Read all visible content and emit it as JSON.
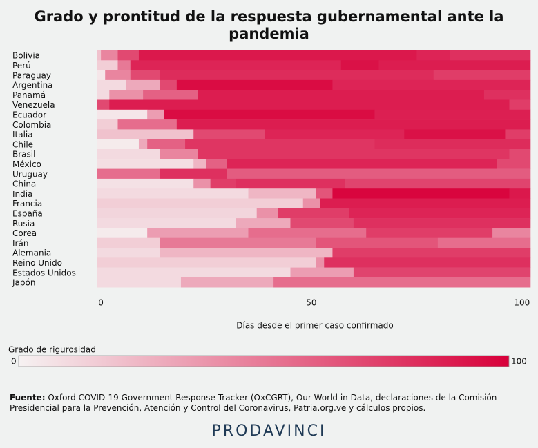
{
  "chart_data": {
    "type": "heatmap",
    "title": "Grado y prontitud de la respuesta gubernamental ante la pandemia",
    "x_label": "Días desde el primer caso confirmado",
    "xlim": [
      -1,
      102
    ],
    "xticks": [
      0,
      50,
      100
    ],
    "colorscale": {
      "label": "Grado de rigurosidad",
      "min": 0,
      "max": 100,
      "colors": [
        "#f6f2f2",
        "#d8003a"
      ]
    },
    "series": [
      {
        "name": "Bolivia",
        "bins": [
          -1,
          0,
          4,
          9,
          75,
          83,
          102
        ],
        "values": [
          20,
          45,
          70,
          90,
          85,
          80
        ]
      },
      {
        "name": "Perú",
        "bins": [
          -1,
          4,
          7,
          57,
          66,
          102
        ],
        "values": [
          15,
          50,
          85,
          93,
          88
        ]
      },
      {
        "name": "Paraguay",
        "bins": [
          -1,
          1,
          7,
          14,
          79,
          102
        ],
        "values": [
          5,
          45,
          70,
          82,
          75
        ]
      },
      {
        "name": "Argentina",
        "bins": [
          -1,
          6,
          14,
          18,
          55,
          102
        ],
        "values": [
          10,
          30,
          70,
          95,
          85
        ]
      },
      {
        "name": "Panamá",
        "bins": [
          -1,
          2,
          10,
          23,
          91,
          102
        ],
        "values": [
          10,
          40,
          60,
          88,
          80
        ]
      },
      {
        "name": "Venezuela",
        "bins": [
          -1,
          2,
          97,
          102
        ],
        "values": [
          70,
          88,
          75
        ]
      },
      {
        "name": "Ecuador",
        "bins": [
          -1,
          11,
          15,
          65,
          102
        ],
        "values": [
          5,
          35,
          95,
          87
        ]
      },
      {
        "name": "Colombia",
        "bins": [
          -1,
          4,
          18,
          102
        ],
        "values": [
          15,
          55,
          88
        ]
      },
      {
        "name": "Italia",
        "bins": [
          -1,
          22,
          39,
          72,
          96,
          102
        ],
        "values": [
          20,
          70,
          85,
          93,
          75
        ]
      },
      {
        "name": "Chile",
        "bins": [
          -1,
          9,
          11,
          20,
          65,
          102
        ],
        "values": [
          3,
          30,
          60,
          78,
          82
        ]
      },
      {
        "name": "Brasil",
        "bins": [
          -1,
          14,
          23,
          97,
          102
        ],
        "values": [
          10,
          45,
          78,
          70
        ]
      },
      {
        "name": "México",
        "bins": [
          -1,
          22,
          25,
          30,
          94,
          102
        ],
        "values": [
          8,
          25,
          60,
          85,
          70
        ]
      },
      {
        "name": "Uruguay",
        "bins": [
          -1,
          14,
          30,
          102
        ],
        "values": [
          55,
          80,
          62
        ]
      },
      {
        "name": "China",
        "bins": [
          -1,
          22,
          26,
          32,
          58,
          102
        ],
        "values": [
          7,
          40,
          75,
          80,
          72
        ]
      },
      {
        "name": "India",
        "bins": [
          -1,
          35,
          51,
          55,
          97,
          102
        ],
        "values": [
          10,
          25,
          65,
          98,
          90
        ]
      },
      {
        "name": "Francia",
        "bins": [
          -1,
          48,
          52,
          102
        ],
        "values": [
          15,
          40,
          88
        ]
      },
      {
        "name": "España",
        "bins": [
          -1,
          37,
          42,
          59,
          102
        ],
        "values": [
          12,
          40,
          75,
          85
        ]
      },
      {
        "name": "Rusia",
        "bins": [
          -1,
          32,
          45,
          60,
          102
        ],
        "values": [
          10,
          30,
          70,
          80
        ]
      },
      {
        "name": "Corea",
        "bins": [
          -1,
          11,
          35,
          63,
          93,
          102
        ],
        "values": [
          3,
          35,
          55,
          75,
          45
        ]
      },
      {
        "name": "Irán",
        "bins": [
          -1,
          14,
          51,
          80,
          102
        ],
        "values": [
          15,
          50,
          65,
          55
        ]
      },
      {
        "name": "Alemania",
        "bins": [
          -1,
          14,
          55,
          102
        ],
        "values": [
          10,
          25,
          75
        ]
      },
      {
        "name": "Reino Unido",
        "bins": [
          -1,
          51,
          53,
          102
        ],
        "values": [
          15,
          40,
          80
        ]
      },
      {
        "name": "Estados Unidos",
        "bins": [
          -1,
          45,
          60,
          102
        ],
        "values": [
          10,
          35,
          72
        ]
      },
      {
        "name": "Japón",
        "bins": [
          -1,
          19,
          41,
          102
        ],
        "values": [
          10,
          30,
          55
        ]
      }
    ]
  },
  "footer": {
    "source_label": "Fuente:",
    "source": "Oxford COVID-19 Government Response Tracker (OxCGRT), Our World in Data, declaraciones de la Comisión Presidencial para la Prevención, Atención y Control del Coronavirus, Patria.org.ve y cálculos propios.",
    "brand": "PRODAVINCI"
  }
}
